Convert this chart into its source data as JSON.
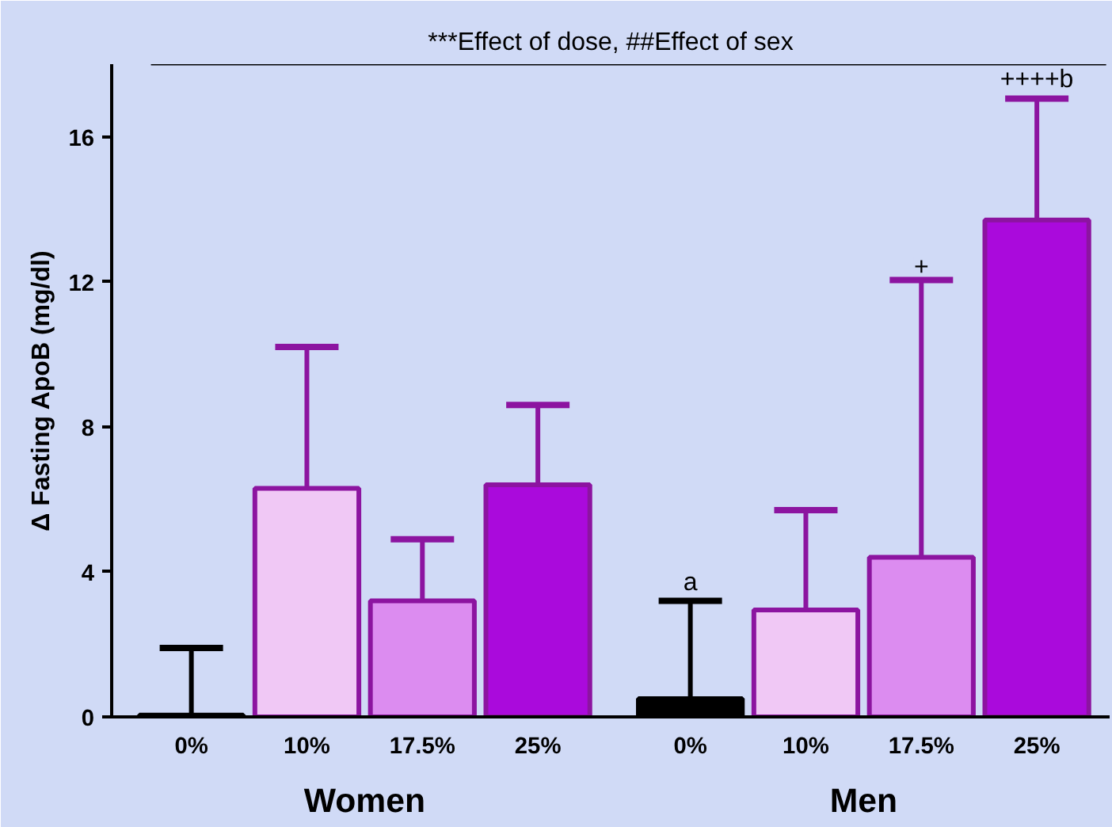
{
  "chart_data": {
    "type": "bar",
    "title": "***Effect of dose, ##Effect of sex",
    "ylabel": "Δ Fasting ApoB (mg/dl)",
    "categories": [
      "0%",
      "10%",
      "17.5%",
      "25%",
      "0%",
      "10%",
      "17.5%",
      "25%"
    ],
    "values": [
      0.05,
      6.3,
      3.2,
      6.4,
      0.5,
      2.95,
      4.4,
      13.7
    ],
    "colors": [
      "#000000",
      "#f0c8f5",
      "#dc8cf0",
      "#aa0adc",
      "#000000",
      "#f0c8f5",
      "#dc8cf0",
      "#aa0adc"
    ],
    "errors": [
      [
        0.05,
        1.9
      ],
      [
        6.3,
        10.2
      ],
      [
        3.2,
        4.9
      ],
      [
        6.4,
        8.6
      ],
      [
        0.5,
        3.2
      ],
      [
        2.95,
        5.7
      ],
      [
        4.4,
        12.05
      ],
      [
        13.7,
        17.05
      ]
    ],
    "ylim": [
      0,
      18
    ],
    "yticks": [
      0,
      4,
      8,
      12,
      16
    ],
    "grid": false,
    "annotations": [
      "Women",
      "Men",
      {
        "text": "a",
        "y": 3.2
      },
      {
        "text": "+",
        "y": 12.05
      },
      {
        "text": "++++b",
        "y": 17.05
      }
    ]
  }
}
